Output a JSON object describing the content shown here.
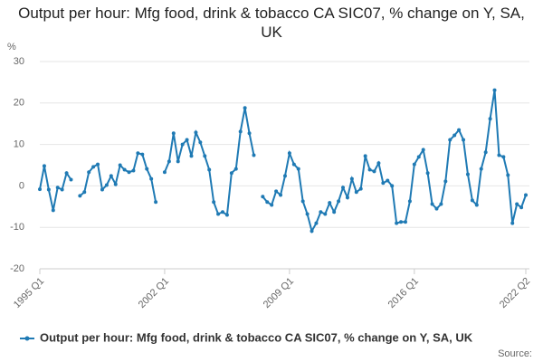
{
  "chart_data": {
    "type": "line",
    "title": "Output per hour: Mfg food, drink & tobacco CA SIC07, % change on Y, SA, UK",
    "y_label": "%",
    "source": "Source:",
    "categories": [
      "1995 Q1",
      null,
      null,
      null,
      null,
      null,
      null,
      null,
      null,
      null,
      null,
      null,
      null,
      null,
      null,
      null,
      null,
      null,
      null,
      null,
      null,
      null,
      null,
      null,
      null,
      null,
      null,
      null,
      "2002 Q1",
      null,
      null,
      null,
      null,
      null,
      null,
      null,
      null,
      null,
      null,
      null,
      null,
      null,
      null,
      null,
      null,
      null,
      null,
      null,
      null,
      null,
      null,
      null,
      null,
      null,
      null,
      null,
      "2009 Q1",
      null,
      null,
      null,
      null,
      null,
      null,
      null,
      null,
      null,
      null,
      null,
      null,
      null,
      null,
      null,
      null,
      null,
      null,
      null,
      null,
      null,
      null,
      null,
      null,
      null,
      null,
      null,
      "2016 Q1",
      null,
      null,
      null,
      null,
      null,
      null,
      null,
      null,
      null,
      null,
      null,
      null,
      null,
      null,
      null,
      null,
      null,
      null,
      null,
      null,
      null,
      null,
      null,
      null,
      "2022 Q2"
    ],
    "series": [
      {
        "name": "Output per hour: Mfg food, drink & tobacco CA SIC07, % change on Y, SA, UK",
        "color": "#1f7ab4",
        "values": [
          -0.8,
          4.8,
          -0.9,
          -5.9,
          -0.4,
          -0.9,
          3.1,
          1.5,
          null,
          -2.4,
          -1.5,
          3.3,
          4.6,
          5.2,
          -0.9,
          0.2,
          2.4,
          0.4,
          5.0,
          3.9,
          3.3,
          3.7,
          7.9,
          7.6,
          4.1,
          1.7,
          -3.9,
          null,
          3.3,
          5.9,
          12.7,
          5.9,
          10.0,
          11.1,
          7.2,
          12.9,
          10.5,
          7.2,
          3.9,
          -3.9,
          -6.8,
          -6.3,
          -7.0,
          3.1,
          4.1,
          13.1,
          18.8,
          12.7,
          7.4,
          null,
          -2.6,
          -3.9,
          -4.6,
          -1.3,
          -2.2,
          2.4,
          7.9,
          5.2,
          4.1,
          -3.7,
          -6.8,
          -10.9,
          -9.0,
          -6.3,
          -6.8,
          -4.1,
          -6.3,
          -3.7,
          -0.4,
          -2.8,
          1.7,
          -1.5,
          -0.7,
          7.2,
          3.9,
          3.5,
          5.5,
          0.7,
          1.3,
          0,
          -9.0,
          -8.7,
          -8.7,
          -3.7,
          5.2,
          7.0,
          8.7,
          3.1,
          -4.4,
          -5.5,
          -4.4,
          1.1,
          11.1,
          12.2,
          13.5,
          11.1,
          2.8,
          -3.5,
          -4.6,
          4.1,
          8.1,
          16.2,
          23.1,
          7.4,
          7.0,
          2.6,
          -9.0,
          -4.4,
          -5.2,
          -2.2
        ]
      }
    ],
    "ylim": [
      -20,
      30
    ],
    "yticks": [
      -20,
      -10,
      0,
      10,
      20,
      30
    ],
    "grid": true,
    "legend": "bottom"
  }
}
